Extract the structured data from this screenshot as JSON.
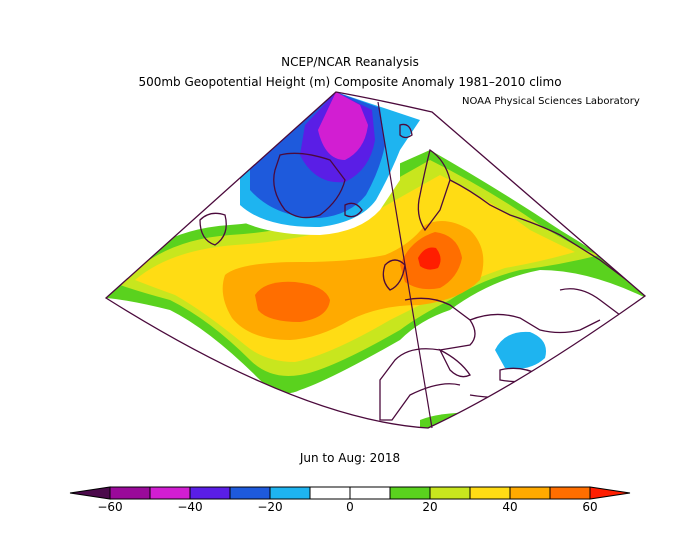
{
  "title_line1": "NCEP/NCAR Reanalysis",
  "title_line2": "500mb Geopotential Height (m) Composite Anomaly 1981–2010 climo",
  "credit": "NOAA Physical Sciences Laboratory",
  "period": "Jun to Aug: 2018",
  "colorbar": {
    "min": -60,
    "max": 60,
    "step": 10,
    "tick_labels": [
      "−60",
      "−40",
      "−20",
      "0",
      "20",
      "40",
      "60"
    ],
    "colors": [
      "#4b0a4b",
      "#9a0a9a",
      "#d21ed2",
      "#5a1ee6",
      "#1e5adc",
      "#1eb4f0",
      "#ffffff",
      "#ffffff",
      "#5ad21e",
      "#c8e61e",
      "#ffdc14",
      "#ffaa00",
      "#ff6e00",
      "#ff1e00"
    ]
  },
  "map": {
    "projection": "conic",
    "region": "North Atlantic and Europe",
    "colors": {
      "deep_purple": "#9a0a9a",
      "magenta": "#d21ed2",
      "violet": "#5a1ee6",
      "blue": "#1e5adc",
      "cyan": "#1eb4f0",
      "green": "#5ad21e",
      "yellowgreen": "#c8e61e",
      "yellow": "#ffdc14",
      "orange": "#ffaa00",
      "darkorange": "#ff6e00",
      "red": "#ff1e00",
      "coast": "#4b0a3c"
    }
  }
}
